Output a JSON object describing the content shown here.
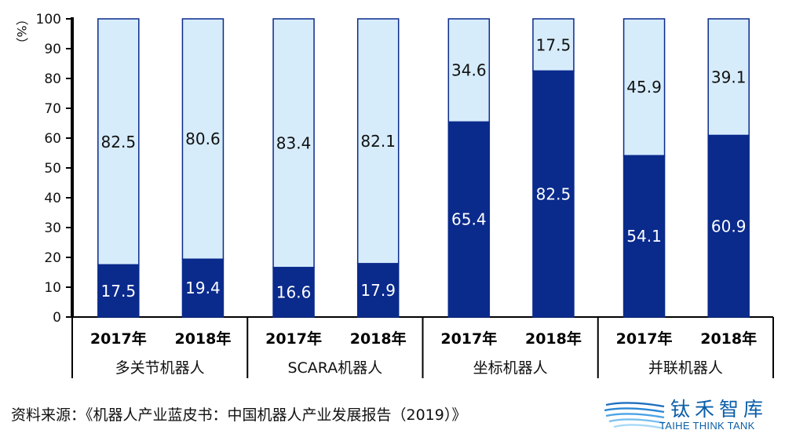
{
  "chart_data": {
    "type": "bar",
    "stacked": true,
    "ylabel": "（%）",
    "ylim": [
      0,
      100
    ],
    "yticks": [
      0,
      10,
      20,
      30,
      40,
      50,
      60,
      70,
      80,
      90,
      100
    ],
    "groups": [
      {
        "name": "多关节机器人",
        "bars": [
          {
            "year": "2017年",
            "bottom": 17.5,
            "top": 82.5
          },
          {
            "year": "2018年",
            "bottom": 19.4,
            "top": 80.6
          }
        ]
      },
      {
        "name": "SCARA机器人",
        "bars": [
          {
            "year": "2017年",
            "bottom": 16.6,
            "top": 83.4
          },
          {
            "year": "2018年",
            "bottom": 17.9,
            "top": 82.1
          }
        ]
      },
      {
        "name": "坐标机器人",
        "bars": [
          {
            "year": "2017年",
            "bottom": 65.4,
            "top": 34.6
          },
          {
            "year": "2018年",
            "bottom": 82.5,
            "top": 17.5
          }
        ]
      },
      {
        "name": "并联机器人",
        "bars": [
          {
            "year": "2017年",
            "bottom": 54.1,
            "top": 45.9
          },
          {
            "year": "2018年",
            "bottom": 60.9,
            "top": 39.1
          }
        ]
      }
    ],
    "colors": {
      "bottom": "#0a2a8c",
      "top": "#d6ecfb",
      "outline": "#0a2a8c"
    }
  },
  "footer": {
    "source": "资料来源：《机器人产业蓝皮书：中国机器人产业发展报告（2019）》",
    "logo_cn": "钛禾智库",
    "logo_en": "TAIHE THINK TANK"
  }
}
